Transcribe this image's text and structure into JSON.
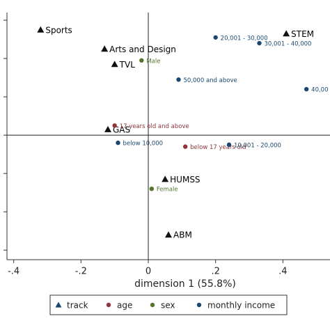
{
  "chart_data": {
    "type": "scatter",
    "x_label": "dimension 1 (55.8%)",
    "xlim": [
      -0.42,
      0.54
    ],
    "ylim": [
      -0.65,
      0.64
    ],
    "xticks": [
      {
        "value": -0.4,
        "label": "-.4"
      },
      {
        "value": -0.2,
        "label": "-.2"
      },
      0,
      {
        "value": 0.2,
        "label": ".2"
      },
      {
        "value": 0.4,
        "label": ".4"
      }
    ],
    "yticks": [
      -0.6,
      -0.4,
      -0.2,
      0,
      0.2,
      0.4,
      0.6
    ],
    "reference_lines": [
      0
    ],
    "series": [
      {
        "name": "track",
        "color": "#1a476f",
        "label_color": "#000000",
        "marker": "triangle",
        "labels": [
          "Sports",
          "Arts and Design",
          "TVL",
          "GAS",
          "HUMSS",
          "ABM",
          "STEM"
        ],
        "x": [
          -0.32,
          -0.13,
          -0.1,
          -0.12,
          0.05,
          0.06,
          0.41
        ],
        "y": [
          0.55,
          0.45,
          0.37,
          0.03,
          -0.23,
          -0.52,
          0.53
        ]
      },
      {
        "name": "age",
        "color": "#90353b",
        "label_color": "#90353b",
        "marker": "circle",
        "labels": [
          "17 years old and above",
          "below 17 years old"
        ],
        "x": [
          -0.1,
          0.11
        ],
        "y": [
          0.05,
          -0.06
        ]
      },
      {
        "name": "sex",
        "color": "#55752f",
        "label_color": "#55752f",
        "marker": "circle",
        "labels": [
          "Male",
          "Female"
        ],
        "x": [
          -0.02,
          0.01
        ],
        "y": [
          0.39,
          -0.28
        ]
      },
      {
        "name": "monthly income",
        "color": "#1a476f",
        "label_color": "#1a476f",
        "marker": "circle",
        "labels": [
          "20,001 - 30,000",
          "30,001 - 40,000",
          "50,000 and above",
          "40,00",
          "below 10,000",
          "10,001 - 20,000"
        ],
        "x": [
          0.2,
          0.33,
          0.09,
          0.47,
          -0.09,
          0.24
        ],
        "y": [
          0.51,
          0.48,
          0.29,
          0.24,
          -0.04,
          -0.05
        ]
      }
    ]
  }
}
